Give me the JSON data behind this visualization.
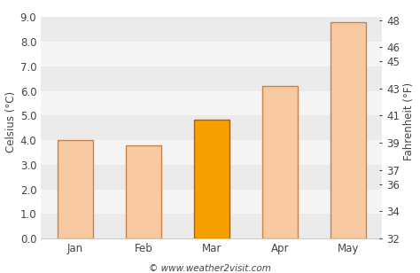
{
  "categories": [
    "Jan",
    "Feb",
    "Mar",
    "Apr",
    "May"
  ],
  "values_c": [
    4.0,
    3.8,
    4.85,
    6.2,
    8.8
  ],
  "bar_colors": [
    "#f8c9a0",
    "#f8c9a0",
    "#f5a000",
    "#f8c9a0",
    "#f8c9a0"
  ],
  "bar_edgecolors": [
    "#c8824a",
    "#c8824a",
    "#b06000",
    "#c8824a",
    "#c8824a"
  ],
  "ylabel_left": "Celsius (°C)",
  "ylabel_right": "Fahrenheit (°F)",
  "ylim_left": [
    0.0,
    9.5
  ],
  "yticks_left": [
    0.0,
    1.0,
    2.0,
    3.0,
    4.0,
    5.0,
    6.0,
    7.0,
    8.0,
    9.0
  ],
  "yticks_right_labels": [
    32,
    34,
    36,
    37,
    39,
    41,
    43,
    45,
    46,
    48
  ],
  "yticks_right_positions": [
    0.0,
    1.111,
    2.222,
    2.778,
    3.889,
    5.0,
    6.111,
    7.222,
    7.778,
    8.889
  ],
  "band_colors": [
    "#ebebeb",
    "#f5f5f5"
  ],
  "background_color": "#ffffff",
  "grid_color": "#cccccc",
  "font_color": "#444444",
  "watermark": "© www.weather2visit.com",
  "font_size": 8.5,
  "bar_linewidth": 1.0
}
